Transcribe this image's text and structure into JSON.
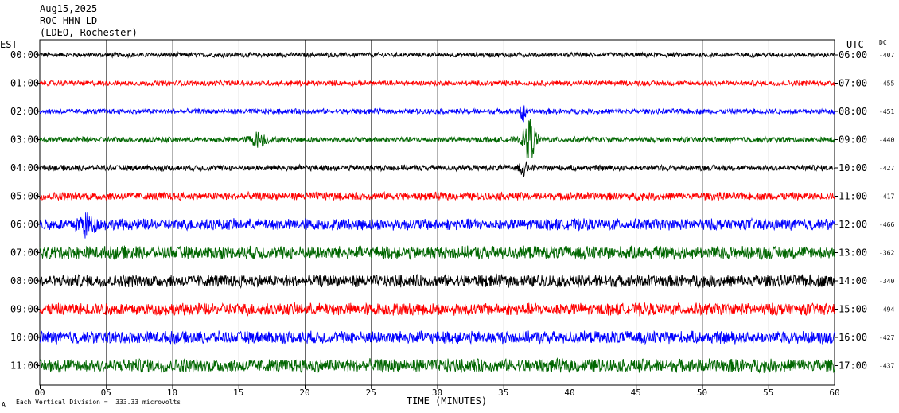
{
  "header": {
    "date": "Aug15,2025",
    "station": "ROC HHN LD --",
    "network": "(LDEO, Rochester)"
  },
  "footer": {
    "mark": "A",
    "scale_note": "Each Vertical Division =  333.33 microvolts"
  },
  "colors": {
    "cycle": [
      "#000000",
      "#ff0000",
      "#0000ff",
      "#006600"
    ],
    "grid": "#000000"
  },
  "chart_data": {
    "type": "line",
    "title": "",
    "xlabel": "TIME (MINUTES)",
    "ylabel": "",
    "left_axis_label": "EST",
    "right_axis_label": "UTC",
    "dc_label": "DC",
    "xlim": [
      0,
      60
    ],
    "x_ticks": [
      0,
      5,
      10,
      15,
      20,
      25,
      30,
      35,
      40,
      45,
      50,
      55,
      60
    ],
    "x_tick_labels": [
      "00",
      "05",
      "10",
      "15",
      "20",
      "25",
      "30",
      "35",
      "40",
      "45",
      "50",
      "55",
      "60"
    ],
    "grid": "vertical every 5 minutes",
    "rows": [
      {
        "est": "00:00",
        "utc": "06:00",
        "dc": "-407",
        "amp": 0.28
      },
      {
        "est": "01:00",
        "utc": "07:00",
        "dc": "-455",
        "amp": 0.3
      },
      {
        "est": "02:00",
        "utc": "08:00",
        "dc": "-451",
        "amp": 0.3
      },
      {
        "est": "03:00",
        "utc": "09:00",
        "dc": "-440",
        "amp": 0.32
      },
      {
        "est": "04:00",
        "utc": "10:00",
        "dc": "-427",
        "amp": 0.34
      },
      {
        "est": "05:00",
        "utc": "11:00",
        "dc": "-417",
        "amp": 0.45
      },
      {
        "est": "06:00",
        "utc": "12:00",
        "dc": "-466",
        "amp": 0.65
      },
      {
        "est": "07:00",
        "utc": "13:00",
        "dc": "-362",
        "amp": 0.75
      },
      {
        "est": "08:00",
        "utc": "14:00",
        "dc": "-340",
        "amp": 0.72
      },
      {
        "est": "09:00",
        "utc": "15:00",
        "dc": "-494",
        "amp": 0.7
      },
      {
        "est": "10:00",
        "utc": "16:00",
        "dc": "-427",
        "amp": 0.72
      },
      {
        "est": "11:00",
        "utc": "17:00",
        "dc": "-437",
        "amp": 0.78
      }
    ],
    "events": [
      {
        "row": 3,
        "start_min": 36.2,
        "end_min": 37.8,
        "amp": 2.4
      },
      {
        "row": 2,
        "start_min": 36.2,
        "end_min": 36.8,
        "amp": 1.6
      },
      {
        "row": 4,
        "start_min": 36.0,
        "end_min": 37.0,
        "amp": 0.8
      },
      {
        "row": 3,
        "start_min": 15.5,
        "end_min": 17.5,
        "amp": 0.8
      },
      {
        "row": 6,
        "start_min": 2.5,
        "end_min": 4.5,
        "amp": 1.1
      }
    ]
  }
}
